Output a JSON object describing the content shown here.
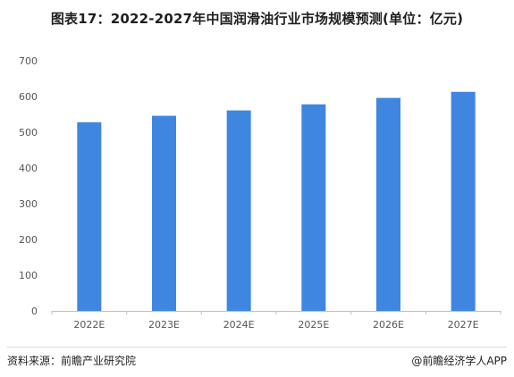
{
  "header": {
    "title": "图表17：2022-2027年中国润滑油行业市场规模预测(单位：亿元)"
  },
  "footer": {
    "source": "资料来源：前瞻产业研究院",
    "brand": "@前瞻经济学人APP"
  },
  "chart_data": {
    "type": "bar",
    "title": "图表17：2022-2027年中国润滑油行业市场规模预测(单位：亿元)",
    "xlabel": "",
    "ylabel": "",
    "categories": [
      "2022E",
      "2023E",
      "2024E",
      "2025E",
      "2026E",
      "2027E"
    ],
    "values": [
      528,
      546,
      561,
      578,
      596,
      613
    ],
    "ylim": [
      0,
      700
    ],
    "yticks": [
      0,
      100,
      200,
      300,
      400,
      500,
      600,
      700
    ],
    "grid": false,
    "legend": "none",
    "bar_color": "#3f86e0"
  }
}
